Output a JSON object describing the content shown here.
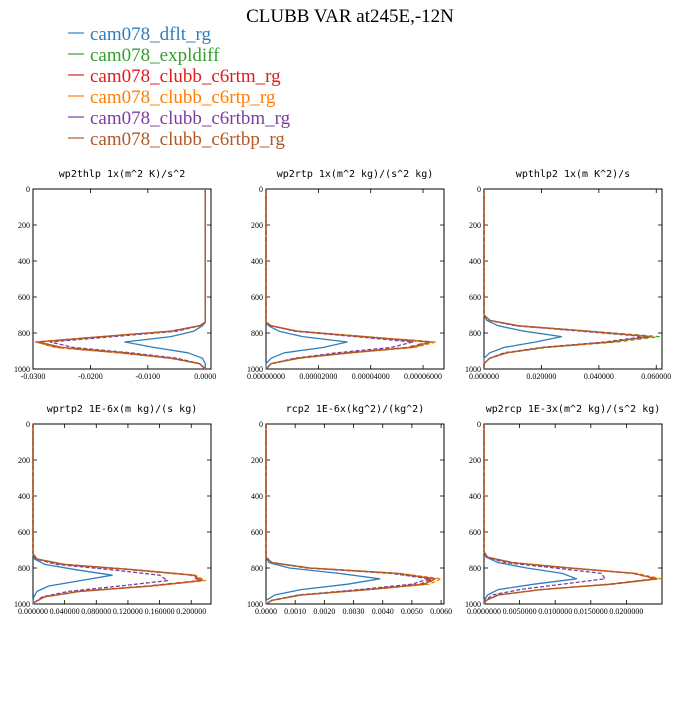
{
  "title": "CLUBB VAR at245E,-12N",
  "series_styles": [
    {
      "name": "cam078_dflt_rg",
      "color": "#2f7ebc",
      "dash": ""
    },
    {
      "name": "cam078_expldiff",
      "color": "#33a02c",
      "dash": "4 3"
    },
    {
      "name": "cam078_clubb_c6rtm_rg",
      "color": "#e31a1c",
      "dash": "5 3"
    },
    {
      "name": "cam078_clubb_c6rtp_rg",
      "color": "#ff7f00",
      "dash": "4 2"
    },
    {
      "name": "cam078_clubb_c6rtbm_rg",
      "color": "#7a3fa0",
      "dash": "4 2"
    },
    {
      "name": "cam078_clubb_c6rtbp_rg",
      "color": "#b15928",
      "dash": ""
    }
  ],
  "chart_data": [
    {
      "type": "line",
      "title": "wp2thlp  1x(m^2 K)/s^2",
      "xlim": [
        -0.03,
        0.001
      ],
      "ylim": [
        1000,
        0
      ],
      "xticks": [
        "-0.0300",
        "-0.0200",
        "-0.0100",
        "0.0000"
      ],
      "xtick_values": [
        -0.03,
        -0.02,
        -0.01,
        0.0
      ],
      "yticks": [
        "0",
        "200",
        "400",
        "600",
        "800",
        "1000"
      ],
      "y": [
        0,
        600,
        740,
        760,
        790,
        820,
        850,
        880,
        910,
        940,
        970,
        1000
      ],
      "series": [
        {
          "name": "cam078_dflt_rg",
          "values": [
            0.0,
            0.0,
            0.0,
            -0.0005,
            -0.002,
            -0.006,
            -0.014,
            -0.009,
            -0.003,
            -0.0005,
            0.0,
            0.0
          ]
        },
        {
          "name": "cam078_expldiff",
          "values": [
            0.0,
            0.0,
            0.0,
            -0.001,
            -0.006,
            -0.018,
            -0.0295,
            -0.026,
            -0.015,
            -0.006,
            -0.001,
            0.0
          ]
        },
        {
          "name": "cam078_clubb_c6rtm_rg",
          "values": [
            0.0,
            0.0,
            0.0,
            -0.001,
            -0.006,
            -0.018,
            -0.0295,
            -0.026,
            -0.015,
            -0.006,
            -0.001,
            0.0
          ]
        },
        {
          "name": "cam078_clubb_c6rtp_rg",
          "values": [
            0.0,
            0.0,
            0.0,
            -0.001,
            -0.006,
            -0.018,
            -0.0295,
            -0.026,
            -0.015,
            -0.006,
            -0.001,
            0.0
          ]
        },
        {
          "name": "cam078_clubb_c6rtbm_rg",
          "values": [
            0.0,
            0.0,
            0.0,
            -0.001,
            -0.005,
            -0.016,
            -0.027,
            -0.023,
            -0.013,
            -0.005,
            -0.001,
            0.0
          ]
        },
        {
          "name": "cam078_clubb_c6rtbp_rg",
          "values": [
            0.0,
            0.0,
            0.0,
            -0.001,
            -0.006,
            -0.018,
            -0.029,
            -0.025,
            -0.014,
            -0.006,
            -0.001,
            0.0
          ]
        }
      ]
    },
    {
      "type": "line",
      "title": "wp2rtp  1x(m^2 kg)/(s^2 kg)",
      "xlim": [
        0.0,
        6.8e-05
      ],
      "ylim": [
        1000,
        0
      ],
      "xticks": [
        "0.00000000",
        "0.00002000",
        "0.00004000",
        "0.00006000"
      ],
      "xtick_values": [
        0.0,
        2e-05,
        4e-05,
        6e-05
      ],
      "yticks": [
        "0",
        "200",
        "400",
        "600",
        "800",
        "1000"
      ],
      "y": [
        0,
        600,
        740,
        760,
        790,
        820,
        850,
        880,
        910,
        940,
        970,
        1000
      ],
      "series": [
        {
          "name": "cam078_dflt_rg",
          "values": [
            0.0,
            0.0,
            0.0,
            1e-06,
            5e-06,
            1.4e-05,
            3.1e-05,
            2.2e-05,
            7e-06,
            2e-06,
            0.0,
            0.0
          ]
        },
        {
          "name": "cam078_expldiff",
          "values": [
            0.0,
            0.0,
            0.0,
            2e-06,
            1.2e-05,
            3.8e-05,
            6.4e-05,
            5.6e-05,
            3.2e-05,
            1.3e-05,
            2e-06,
            0.0
          ]
        },
        {
          "name": "cam078_clubb_c6rtm_rg",
          "values": [
            0.0,
            0.0,
            0.0,
            2e-06,
            1.2e-05,
            3.7e-05,
            6.2e-05,
            5.4e-05,
            3.1e-05,
            1.2e-05,
            2e-06,
            0.0
          ]
        },
        {
          "name": "cam078_clubb_c6rtp_rg",
          "values": [
            0.0,
            0.0,
            0.0,
            2e-06,
            1.2e-05,
            3.8e-05,
            6.5e-05,
            5.7e-05,
            3.3e-05,
            1.3e-05,
            2e-06,
            0.0
          ]
        },
        {
          "name": "cam078_clubb_c6rtbm_rg",
          "values": [
            0.0,
            0.0,
            0.0,
            2e-06,
            1.1e-05,
            3.4e-05,
            5.6e-05,
            4.8e-05,
            2.7e-05,
            1.1e-05,
            2e-06,
            0.0
          ]
        },
        {
          "name": "cam078_clubb_c6rtbp_rg",
          "values": [
            0.0,
            0.0,
            0.0,
            2e-06,
            1.2e-05,
            3.7e-05,
            6.3e-05,
            5.5e-05,
            3.2e-05,
            1.2e-05,
            2e-06,
            0.0
          ]
        }
      ]
    },
    {
      "type": "line",
      "title": "wpthlp2  1x(m K^2)/s",
      "xlim": [
        0.0,
        0.062
      ],
      "ylim": [
        1000,
        0
      ],
      "xticks": [
        "0.000000",
        "0.020000",
        "0.040000",
        "0.060000"
      ],
      "xtick_values": [
        0.0,
        0.02,
        0.04,
        0.06
      ],
      "yticks": [
        "0",
        "200",
        "400",
        "600",
        "800",
        "1000"
      ],
      "y": [
        0,
        600,
        700,
        730,
        760,
        790,
        820,
        850,
        880,
        910,
        940,
        970,
        1000
      ],
      "series": [
        {
          "name": "cam078_dflt_rg",
          "values": [
            0.0,
            0.0,
            0.0,
            0.001,
            0.005,
            0.014,
            0.027,
            0.018,
            0.007,
            0.002,
            0.0,
            0.0,
            0.0
          ]
        },
        {
          "name": "cam078_expldiff",
          "values": [
            0.0,
            0.0,
            0.0,
            0.002,
            0.012,
            0.037,
            0.061,
            0.046,
            0.022,
            0.008,
            0.002,
            0.0,
            0.0
          ]
        },
        {
          "name": "cam078_clubb_c6rtm_rg",
          "values": [
            0.0,
            0.0,
            0.0,
            0.002,
            0.012,
            0.036,
            0.058,
            0.044,
            0.021,
            0.008,
            0.002,
            0.0,
            0.0
          ]
        },
        {
          "name": "cam078_clubb_c6rtp_rg",
          "values": [
            0.0,
            0.0,
            0.0,
            0.002,
            0.012,
            0.036,
            0.059,
            0.045,
            0.021,
            0.008,
            0.002,
            0.0,
            0.0
          ]
        },
        {
          "name": "cam078_clubb_c6rtbm_rg",
          "values": [
            0.0,
            0.0,
            0.0,
            0.002,
            0.011,
            0.034,
            0.056,
            0.042,
            0.02,
            0.007,
            0.002,
            0.0,
            0.0
          ]
        },
        {
          "name": "cam078_clubb_c6rtbp_rg",
          "values": [
            0.0,
            0.0,
            0.0,
            0.002,
            0.012,
            0.036,
            0.058,
            0.044,
            0.021,
            0.008,
            0.002,
            0.0,
            0.0
          ]
        }
      ]
    },
    {
      "type": "line",
      "title": "wprtp2  1E-6x(m kg)/(s kg)",
      "xlim": [
        0.0,
        0.225
      ],
      "ylim": [
        1000,
        0
      ],
      "xticks": [
        "0.000000",
        "0.040000",
        "0.080000",
        "0.120000",
        "0.160000",
        "0.200000"
      ],
      "xtick_values": [
        0.0,
        0.04,
        0.08,
        0.12,
        0.16,
        0.2
      ],
      "yticks": [
        "0",
        "200",
        "400",
        "600",
        "800",
        "1000"
      ],
      "y": [
        0,
        600,
        720,
        750,
        780,
        810,
        840,
        870,
        900,
        930,
        960,
        990,
        1000
      ],
      "series": [
        {
          "name": "cam078_dflt_rg",
          "values": [
            0.0,
            0.0,
            0.0,
            0.002,
            0.015,
            0.055,
            0.1,
            0.06,
            0.02,
            0.005,
            0.001,
            0.0,
            0.0
          ]
        },
        {
          "name": "cam078_expldiff",
          "values": [
            0.0,
            0.0,
            0.0,
            0.005,
            0.04,
            0.13,
            0.205,
            0.215,
            0.15,
            0.06,
            0.015,
            0.002,
            0.0
          ]
        },
        {
          "name": "cam078_clubb_c6rtm_rg",
          "values": [
            0.0,
            0.0,
            0.0,
            0.005,
            0.038,
            0.125,
            0.2,
            0.21,
            0.145,
            0.058,
            0.014,
            0.002,
            0.0
          ]
        },
        {
          "name": "cam078_clubb_c6rtp_rg",
          "values": [
            0.0,
            0.0,
            0.0,
            0.005,
            0.04,
            0.13,
            0.205,
            0.218,
            0.152,
            0.06,
            0.015,
            0.002,
            0.0
          ]
        },
        {
          "name": "cam078_clubb_c6rtbm_rg",
          "values": [
            0.0,
            0.0,
            0.0,
            0.004,
            0.03,
            0.1,
            0.16,
            0.17,
            0.11,
            0.045,
            0.012,
            0.002,
            0.0
          ]
        },
        {
          "name": "cam078_clubb_c6rtbp_rg",
          "values": [
            0.0,
            0.0,
            0.0,
            0.005,
            0.039,
            0.128,
            0.203,
            0.213,
            0.148,
            0.059,
            0.015,
            0.002,
            0.0
          ]
        }
      ]
    },
    {
      "type": "line",
      "title": "rcp2  1E-6x(kg^2)/(kg^2)",
      "xlim": [
        0.0,
        0.0061
      ],
      "ylim": [
        1000,
        0
      ],
      "xticks": [
        "0.0000",
        "0.0010",
        "0.0020",
        "0.0030",
        "0.0040",
        "0.0050",
        "0.0060"
      ],
      "xtick_values": [
        0.0,
        0.001,
        0.002,
        0.003,
        0.004,
        0.005,
        0.006
      ],
      "yticks": [
        "0",
        "200",
        "400",
        "600",
        "800",
        "1000"
      ],
      "y": [
        0,
        600,
        740,
        770,
        800,
        830,
        860,
        890,
        920,
        950,
        980,
        1000
      ],
      "series": [
        {
          "name": "cam078_dflt_rg",
          "values": [
            0.0,
            0.0,
            0.0,
            0.0001,
            0.0008,
            0.0025,
            0.0039,
            0.0028,
            0.0012,
            0.0003,
            0.0,
            0.0
          ]
        },
        {
          "name": "cam078_expldiff",
          "values": [
            0.0,
            0.0,
            0.0,
            0.0002,
            0.0015,
            0.0045,
            0.0058,
            0.0055,
            0.0035,
            0.0012,
            0.0002,
            0.0
          ]
        },
        {
          "name": "cam078_clubb_c6rtm_rg",
          "values": [
            0.0,
            0.0,
            0.0,
            0.0002,
            0.0015,
            0.0045,
            0.0057,
            0.0053,
            0.0034,
            0.0012,
            0.0002,
            0.0
          ]
        },
        {
          "name": "cam078_clubb_c6rtp_rg",
          "values": [
            0.0,
            0.0,
            0.0,
            0.0002,
            0.0015,
            0.0046,
            0.006,
            0.0056,
            0.0036,
            0.0012,
            0.0002,
            0.0
          ]
        },
        {
          "name": "cam078_clubb_c6rtbm_rg",
          "values": [
            0.0,
            0.0,
            0.0,
            0.0002,
            0.0014,
            0.0043,
            0.0056,
            0.005,
            0.0032,
            0.0011,
            0.0002,
            0.0
          ]
        },
        {
          "name": "cam078_clubb_c6rtbp_rg",
          "values": [
            0.0,
            0.0,
            0.0,
            0.0002,
            0.0015,
            0.0045,
            0.0058,
            0.0054,
            0.0035,
            0.0012,
            0.0002,
            0.0
          ]
        }
      ]
    },
    {
      "type": "line",
      "title": "wp2rcp  1E-3x(m^2 kg)/(s^2 kg)",
      "xlim": [
        0.0,
        0.025
      ],
      "ylim": [
        1000,
        0
      ],
      "xticks": [
        "0.0000000",
        "0.0050000",
        "0.0100000",
        "0.0150000",
        "0.0200000"
      ],
      "xtick_values": [
        0.0,
        0.005,
        0.01,
        0.015,
        0.02
      ],
      "yticks": [
        "0",
        "200",
        "400",
        "600",
        "800",
        "1000"
      ],
      "y": [
        0,
        600,
        710,
        740,
        770,
        800,
        830,
        860,
        890,
        920,
        950,
        980,
        1000
      ],
      "series": [
        {
          "name": "cam078_dflt_rg",
          "values": [
            0.0,
            0.0,
            0.0,
            0.0003,
            0.002,
            0.006,
            0.011,
            0.013,
            0.007,
            0.002,
            0.0005,
            0.0,
            0.0
          ]
        },
        {
          "name": "cam078_expldiff",
          "values": [
            0.0,
            0.0,
            0.0,
            0.0005,
            0.004,
            0.012,
            0.021,
            0.0245,
            0.018,
            0.008,
            0.002,
            0.0003,
            0.0
          ]
        },
        {
          "name": "cam078_clubb_c6rtm_rg",
          "values": [
            0.0,
            0.0,
            0.0,
            0.0005,
            0.004,
            0.012,
            0.021,
            0.024,
            0.0175,
            0.008,
            0.002,
            0.0003,
            0.0
          ]
        },
        {
          "name": "cam078_clubb_c6rtp_rg",
          "values": [
            0.0,
            0.0,
            0.0,
            0.0005,
            0.004,
            0.0125,
            0.0215,
            0.0248,
            0.018,
            0.008,
            0.002,
            0.0003,
            0.0
          ]
        },
        {
          "name": "cam078_clubb_c6rtbm_rg",
          "values": [
            0.0,
            0.0,
            0.0,
            0.0004,
            0.003,
            0.01,
            0.0165,
            0.017,
            0.011,
            0.005,
            0.0012,
            0.0002,
            0.0
          ]
        },
        {
          "name": "cam078_clubb_c6rtbp_rg",
          "values": [
            0.0,
            0.0,
            0.0,
            0.0005,
            0.004,
            0.012,
            0.021,
            0.0242,
            0.0178,
            0.008,
            0.002,
            0.0003,
            0.0
          ]
        }
      ]
    }
  ]
}
